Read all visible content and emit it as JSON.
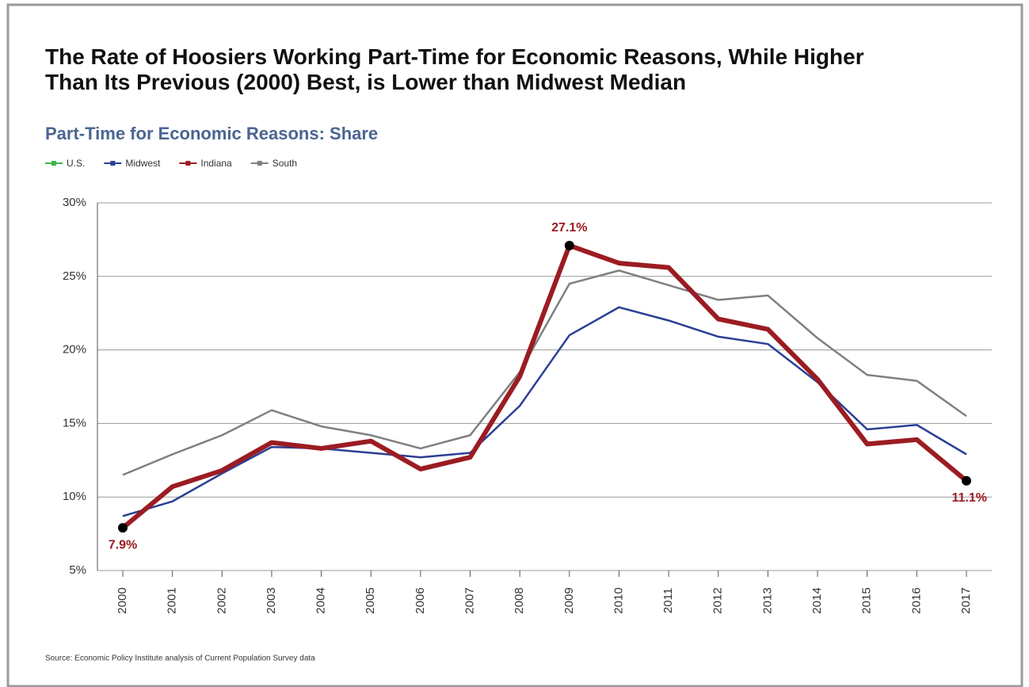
{
  "chart_data": {
    "type": "line",
    "title": "The Rate of Hoosiers Working Part-Time for Economic Reasons, While Higher Than Its Previous (2000) Best, is Lower than Midwest Median",
    "subtitle": "Part-Time for Economic Reasons: Share",
    "source": "Source: Economic Policy Institute analysis of Current Population Survey data",
    "categories": [
      "2000",
      "2001",
      "2002",
      "2003",
      "2004",
      "2005",
      "2006",
      "2007",
      "2008",
      "2009",
      "2010",
      "2011",
      "2012",
      "2013",
      "2014",
      "2015",
      "2016",
      "2017"
    ],
    "series": [
      {
        "name": "U.S.",
        "color": "#3cb54a",
        "values": [
          null,
          null,
          null,
          null,
          null,
          null,
          null,
          null,
          null,
          null,
          null,
          null,
          null,
          null,
          null,
          null,
          null,
          null
        ]
      },
      {
        "name": "Midwest",
        "color": "#2b3f94",
        "values": [
          8.7,
          9.7,
          11.6,
          13.4,
          13.3,
          13.0,
          12.7,
          13.0,
          16.2,
          21.0,
          22.9,
          22.0,
          20.9,
          20.4,
          17.8,
          14.6,
          14.9,
          12.9
        ]
      },
      {
        "name": "Indiana",
        "color": "#9b1c22",
        "values": [
          7.9,
          10.7,
          11.8,
          13.7,
          13.3,
          13.8,
          11.9,
          12.7,
          18.2,
          27.1,
          25.9,
          25.6,
          22.1,
          21.4,
          18.0,
          13.6,
          13.9,
          11.1
        ],
        "value_labels": [
          "7.9%",
          null,
          null,
          null,
          null,
          null,
          null,
          null,
          null,
          "27.1%",
          null,
          null,
          null,
          null,
          null,
          null,
          null,
          "11.1%"
        ]
      },
      {
        "name": "South",
        "color": "#808080",
        "values": [
          11.5,
          12.9,
          14.2,
          15.9,
          14.8,
          14.2,
          13.3,
          14.2,
          18.5,
          24.5,
          25.4,
          24.4,
          23.4,
          23.7,
          20.8,
          18.3,
          17.9,
          15.5
        ]
      }
    ],
    "ylim": [
      5,
      30
    ],
    "yticks": [
      {
        "value": 5,
        "label": "5%"
      },
      {
        "value": 10,
        "label": "10%"
      },
      {
        "value": 15,
        "label": "15%"
      },
      {
        "value": 20,
        "label": "20%"
      },
      {
        "value": 25,
        "label": "25%"
      },
      {
        "value": 30,
        "label": "30%"
      }
    ],
    "grid": true
  }
}
